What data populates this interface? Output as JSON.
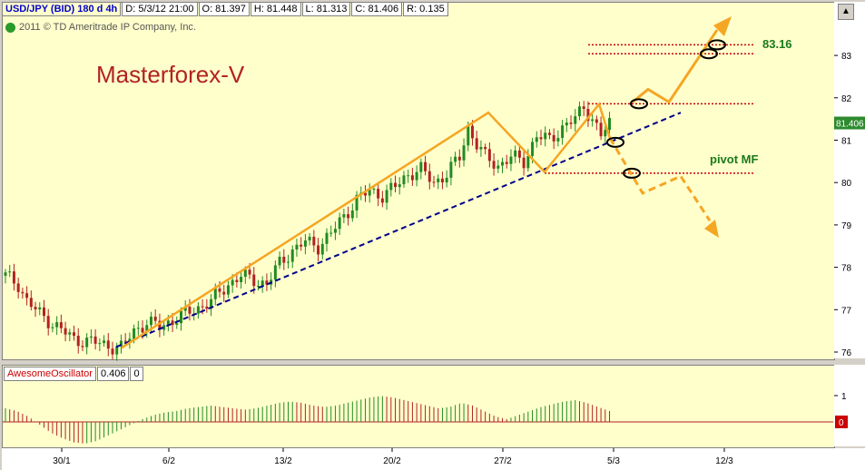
{
  "header": {
    "symbol": "USD/JPY (BID) 180 d 4h",
    "date": "D: 5/3/12 21:00",
    "open": "O: 81.397",
    "high": "H: 81.448",
    "low": "L: 81.313",
    "close": "C: 81.406",
    "range": "R: 0.135"
  },
  "copyright": "2011 © TD Ameritrade IP Company, Inc.",
  "watermark": "Masterforex-V",
  "annotations": {
    "target_label": "83.16",
    "pivot_label": "pivot MF"
  },
  "price_marker": "81.406",
  "oscillator": {
    "name": "AwesomeOscillator",
    "value": "0.406",
    "zero": "0",
    "zero_marker": "0"
  },
  "colors": {
    "background": "#ffffcc",
    "up": "#228b22",
    "down": "#b22222",
    "trend": "#f5a623",
    "trendline": "#00008b",
    "levels": "#cc0000",
    "label_green": "#1a7a1a",
    "watermark": "#b22222"
  },
  "chart_data": [
    {
      "type": "candlestick",
      "title": "USD/JPY (BID) 180 d 4h",
      "ylim": [
        75.8,
        84.0
      ],
      "yticks": [
        76,
        77,
        78,
        79,
        80,
        81,
        82,
        83
      ],
      "x_tick_labels": [
        "30/1",
        "6/2",
        "13/2",
        "20/2",
        "27/2",
        "5/3",
        "12/3"
      ],
      "price_path": [
        [
          0,
          77.8
        ],
        [
          3,
          77.6
        ],
        [
          5,
          77.2
        ],
        [
          8,
          76.9
        ],
        [
          12,
          76.6
        ],
        [
          16,
          76.3
        ],
        [
          20,
          76.25
        ],
        [
          24,
          76.15
        ],
        [
          27,
          76.1
        ],
        [
          30,
          76.5
        ],
        [
          33,
          76.7
        ],
        [
          36,
          76.6
        ],
        [
          40,
          76.8
        ],
        [
          44,
          77.0
        ],
        [
          48,
          77.2
        ],
        [
          52,
          77.6
        ],
        [
          55,
          77.8
        ],
        [
          58,
          77.7
        ],
        [
          61,
          77.6
        ],
        [
          64,
          78.1
        ],
        [
          67,
          78.4
        ],
        [
          70,
          78.6
        ],
        [
          73,
          78.5
        ],
        [
          76,
          78.8
        ],
        [
          79,
          79.2
        ],
        [
          82,
          79.6
        ],
        [
          85,
          79.8
        ],
        [
          88,
          79.7
        ],
        [
          91,
          79.9
        ],
        [
          94,
          80.2
        ],
        [
          97,
          80.3
        ],
        [
          100,
          80.0
        ],
        [
          103,
          80.2
        ],
        [
          106,
          80.6
        ],
        [
          108,
          81.3
        ],
        [
          110,
          80.9
        ],
        [
          112,
          80.6
        ],
        [
          115,
          80.4
        ],
        [
          118,
          80.6
        ],
        [
          121,
          80.5
        ],
        [
          124,
          81.1
        ],
        [
          127,
          81.0
        ],
        [
          130,
          81.3
        ],
        [
          133,
          81.5
        ],
        [
          135,
          81.8
        ],
        [
          137,
          81.5
        ],
        [
          139,
          81.1
        ],
        [
          141,
          81.4
        ]
      ],
      "last_close": 81.406,
      "levels": [
        83.25,
        83.04,
        81.86,
        80.22
      ],
      "target": 83.16,
      "pivot": 80.22
    },
    {
      "type": "bar",
      "name": "AwesomeOscillator",
      "value": 0.406,
      "yticks": [
        1,
        0
      ],
      "values": [
        0.5,
        0.4,
        0.2,
        -0.1,
        -0.4,
        -0.6,
        -0.75,
        -0.8,
        -0.7,
        -0.5,
        -0.3,
        -0.1,
        0.1,
        0.25,
        0.35,
        0.4,
        0.5,
        0.55,
        0.6,
        0.55,
        0.5,
        0.45,
        0.5,
        0.6,
        0.7,
        0.75,
        0.7,
        0.6,
        0.55,
        0.6,
        0.7,
        0.8,
        0.9,
        0.95,
        0.9,
        0.8,
        0.7,
        0.6,
        0.5,
        0.55,
        0.7,
        0.6,
        0.4,
        0.2,
        0.1,
        0.25,
        0.4,
        0.55,
        0.65,
        0.75,
        0.8,
        0.7,
        0.55,
        0.4
      ]
    }
  ]
}
